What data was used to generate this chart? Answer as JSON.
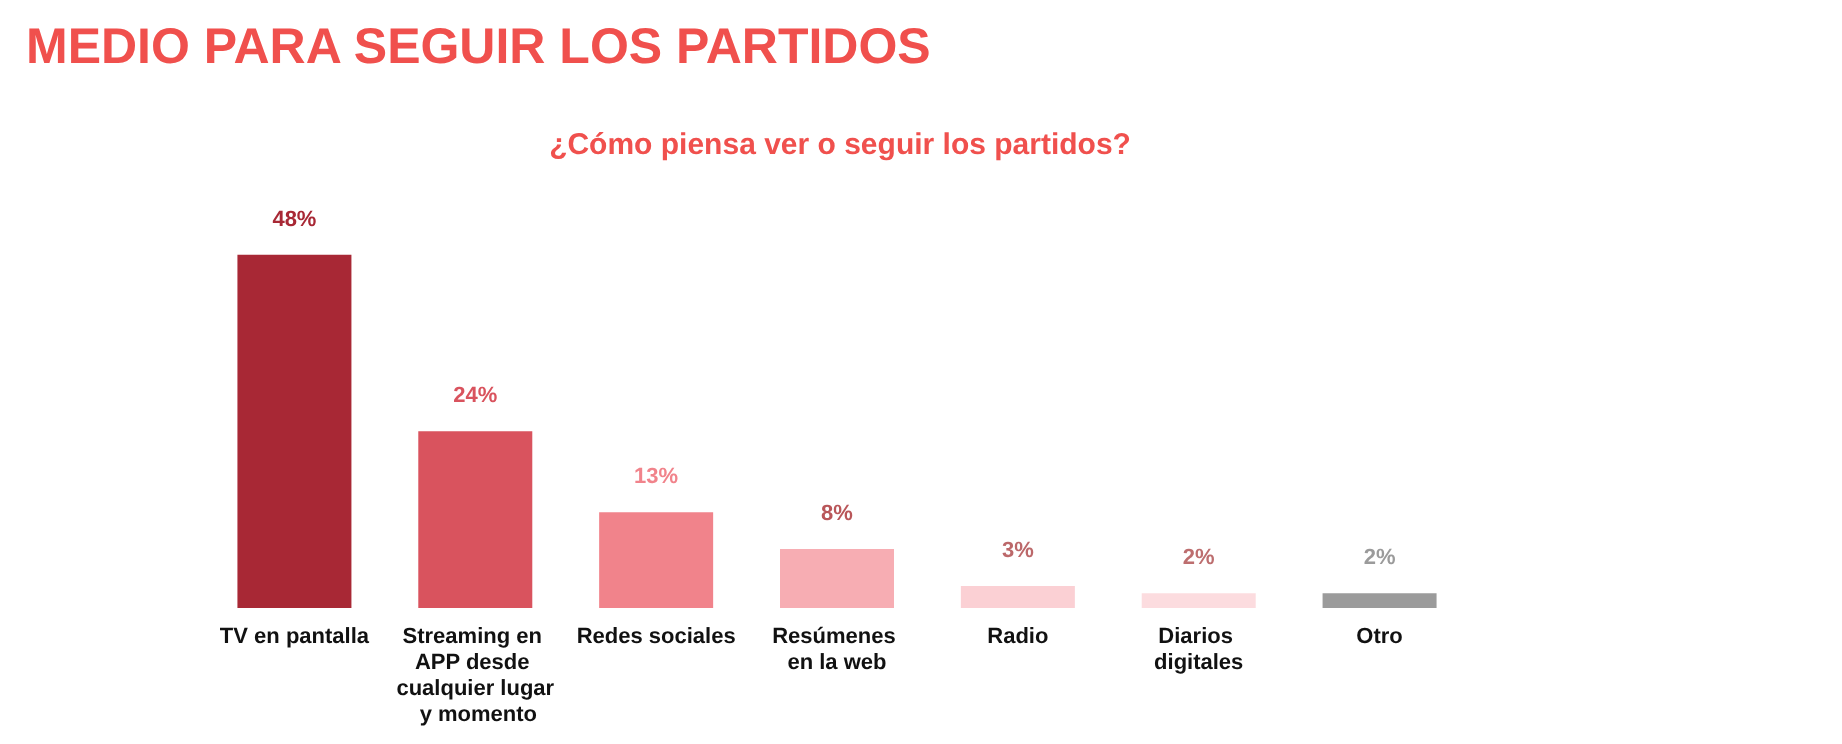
{
  "chart_data": {
    "type": "bar",
    "title": "MEDIO PARA SEGUIR LOS PARTIDOS",
    "subtitle": "¿Cómo piensa ver o seguir los partidos?",
    "categories": [
      "TV en pantalla",
      "Streaming en APP desde cualquier lugar y momento",
      "Redes sociales",
      "Resúmenes en la web",
      "Radio",
      "Diarios digitales",
      "Otro"
    ],
    "values": [
      48,
      24,
      13,
      8,
      3,
      2,
      2
    ],
    "value_labels": [
      "48%",
      "24%",
      "13%",
      "8%",
      "3%",
      "2%",
      "2%"
    ],
    "colors": [
      "#a82835",
      "#d9535e",
      "#f1838b",
      "#f7adb3",
      "#fbd0d4",
      "#fcdcdf",
      "#9b9b9b"
    ]
  }
}
